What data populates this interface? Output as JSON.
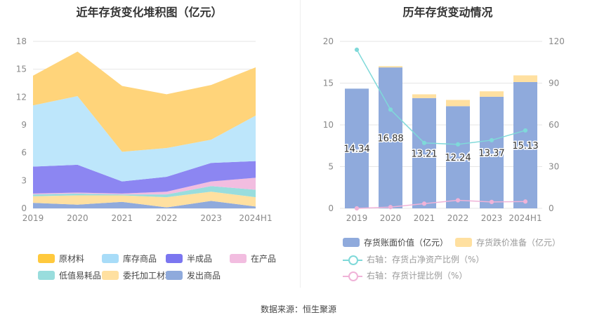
{
  "left_title": "近年存货变化堆积图（亿元）",
  "right_title": "历年存货变动情况",
  "source": "数据来源：恒生聚源",
  "chart_data": [
    {
      "type": "area",
      "title": "近年存货变化堆积图（亿元）",
      "stacked": true,
      "categories": [
        "2019",
        "2020",
        "2021",
        "2022",
        "2023",
        "2024H1"
      ],
      "ylim": [
        0,
        18
      ],
      "yticks": [
        0,
        3,
        6,
        9,
        12,
        15,
        18
      ],
      "grid": true,
      "legend_position": "bottom",
      "series": [
        {
          "name": "发出商品",
          "color": "#8faadc",
          "values": [
            0.6,
            0.4,
            0.7,
            0.1,
            0.8,
            0.2
          ]
        },
        {
          "name": "委托加工材料",
          "color": "#ffe0a0",
          "values": [
            0.7,
            1.0,
            0.7,
            1.1,
            1.0,
            1.0
          ]
        },
        {
          "name": "低值易耗品",
          "color": "#99dddd",
          "values": [
            0.2,
            0.2,
            0.1,
            0.3,
            0.6,
            0.8
          ]
        },
        {
          "name": "在产品",
          "color": "#f2bde0",
          "values": [
            0.1,
            0.1,
            0.1,
            0.3,
            0.5,
            1.3
          ]
        },
        {
          "name": "半成品",
          "color": "#8c86f2",
          "values": [
            2.9,
            3.0,
            1.3,
            1.6,
            2.0,
            1.8
          ]
        },
        {
          "name": "库存商品",
          "color": "#bde6fb",
          "values": [
            6.6,
            7.4,
            3.2,
            3.1,
            2.5,
            4.9
          ]
        },
        {
          "name": "原材料",
          "color": "#ffd47a",
          "values": [
            3.2,
            4.8,
            7.1,
            5.8,
            5.9,
            5.2
          ]
        }
      ]
    },
    {
      "type": "bar",
      "title": "历年存货变动情况",
      "categories": [
        "2019",
        "2020",
        "2021",
        "2022",
        "2023",
        "2024H1"
      ],
      "ylim": [
        0,
        20
      ],
      "yticks": [
        0,
        5,
        10,
        15,
        20
      ],
      "y2lim": [
        0,
        120
      ],
      "y2ticks": [
        0,
        30,
        60,
        90,
        120
      ],
      "grid": true,
      "legend_position": "bottom",
      "series": [
        {
          "name": "存货账面价值（亿元）",
          "color": "#8faadc",
          "axis": "left",
          "kind": "bar",
          "values": [
            14.34,
            16.88,
            13.21,
            12.24,
            13.37,
            15.13
          ],
          "labels": [
            "14.34",
            "16.88",
            "13.21",
            "12.24",
            "13.37",
            "15.13"
          ]
        },
        {
          "name": "存货跌价准备（亿元）",
          "color": "#ffe0a0",
          "axis": "left",
          "kind": "bar",
          "values": [
            0.0,
            0.15,
            0.45,
            0.75,
            0.65,
            0.8
          ]
        },
        {
          "name": "右轴：存货占净资产比例（%）",
          "color": "#7fd9d9",
          "axis": "right",
          "kind": "line",
          "values": [
            114,
            71,
            47,
            46,
            49,
            56
          ]
        },
        {
          "name": "右轴：存货计提比例（%）",
          "color": "#f0b3d8",
          "axis": "right",
          "kind": "line",
          "values": [
            0.0,
            0.9,
            3.4,
            5.8,
            4.6,
            4.9
          ]
        }
      ]
    }
  ]
}
